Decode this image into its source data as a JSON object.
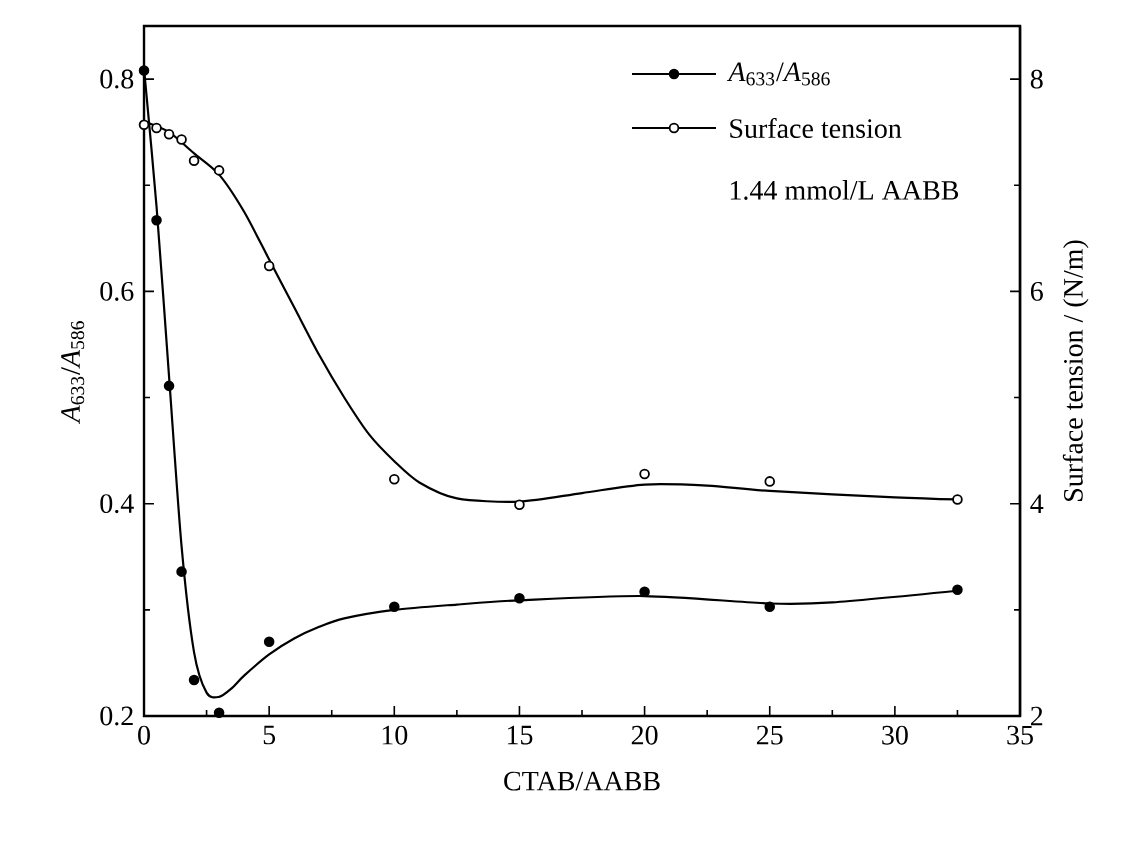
{
  "chart_data": {
    "type": "scatter",
    "xlabel": "CTAB/AABB",
    "ylabel": "*A*$_{633}$/*A*$_{586}$",
    "y2label": "Surface tension / (N/m)",
    "xlim": [
      0,
      35
    ],
    "xticks": [
      0,
      5,
      10,
      15,
      20,
      25,
      30,
      35
    ],
    "ylim": [
      0.2,
      0.85
    ],
    "yticks": [
      0.2,
      0.4,
      0.6,
      0.8
    ],
    "y2lim": [
      2,
      8.5
    ],
    "y2ticks": [
      2,
      4,
      6,
      8
    ],
    "legend": "top right",
    "marker": "circle",
    "line_style": "solid",
    "annotations": [
      "1.44 mmol/L   AABB"
    ],
    "series": [
      {
        "name": "*A*$_{633}$/*A*$_{586}$",
        "color": "#000000",
        "x": [
          0,
          0.5,
          1,
          1.5,
          2,
          3,
          5,
          10,
          15,
          20,
          25,
          32.5
        ],
        "values": [
          0.808,
          0.667,
          0.511,
          0.336,
          0.234,
          0.203,
          0.27,
          0.303,
          0.311,
          0.317,
          0.303,
          0.319
        ]
      },
      {
        "name": "Surface tension",
        "axis": "y2",
        "color": "#000000",
        "x": [
          0,
          0.5,
          1,
          1.5,
          2,
          3,
          5,
          10,
          15,
          20,
          25,
          32.5
        ],
        "values": [
          7.57,
          7.54,
          7.48,
          7.43,
          7.23,
          7.14,
          6.24,
          4.23,
          3.99,
          4.28,
          4.21,
          4.04
        ]
      },
      {
        "type": "line",
        "marker": "none",
        "color": "#000000",
        "x": [
          0,
          0.5,
          1,
          1.5,
          2,
          2.5,
          3,
          3.5,
          4,
          5,
          6,
          7,
          8,
          10,
          12.5,
          15,
          20,
          25,
          27.5,
          32.5
        ],
        "values": [
          0.81,
          0.68,
          0.52,
          0.36,
          0.26,
          0.222,
          0.218,
          0.226,
          0.238,
          0.258,
          0.273,
          0.284,
          0.292,
          0.3,
          0.305,
          0.309,
          0.313,
          0.306,
          0.307,
          0.318
        ]
      },
      {
        "type": "line",
        "marker": "none",
        "axis": "y2",
        "color": "#000000",
        "x": [
          0,
          1,
          2,
          3,
          4,
          5,
          6,
          7,
          8,
          9,
          10,
          11,
          12.5,
          15,
          17.5,
          20,
          22.5,
          25,
          30,
          32.5
        ],
        "values": [
          7.6,
          7.5,
          7.3,
          7.1,
          6.75,
          6.3,
          5.85,
          5.4,
          5.0,
          4.65,
          4.4,
          4.2,
          4.05,
          4.02,
          4.1,
          4.18,
          4.17,
          4.12,
          4.06,
          4.04
        ]
      }
    ]
  }
}
